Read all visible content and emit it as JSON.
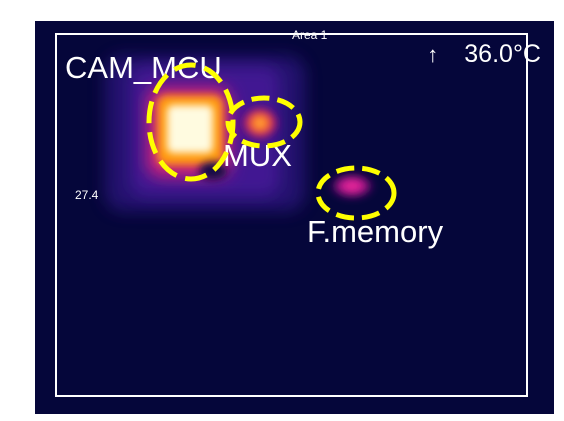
{
  "image": {
    "area_label": "Area 1",
    "max_temp_arrow": "↑",
    "max_temp": "36.0°C",
    "scale_min": "27.4",
    "components": [
      {
        "label": "CAM_MCU"
      },
      {
        "label": "MUX"
      },
      {
        "label": "F.memory"
      }
    ],
    "colors": {
      "background": "#05063a",
      "callout": "#ffff00",
      "border": "#ffffff",
      "hotspot_core": "#fffbe0",
      "hotspot_mid": "#ff9a10",
      "hotspot_edge": "#b0148a"
    }
  }
}
